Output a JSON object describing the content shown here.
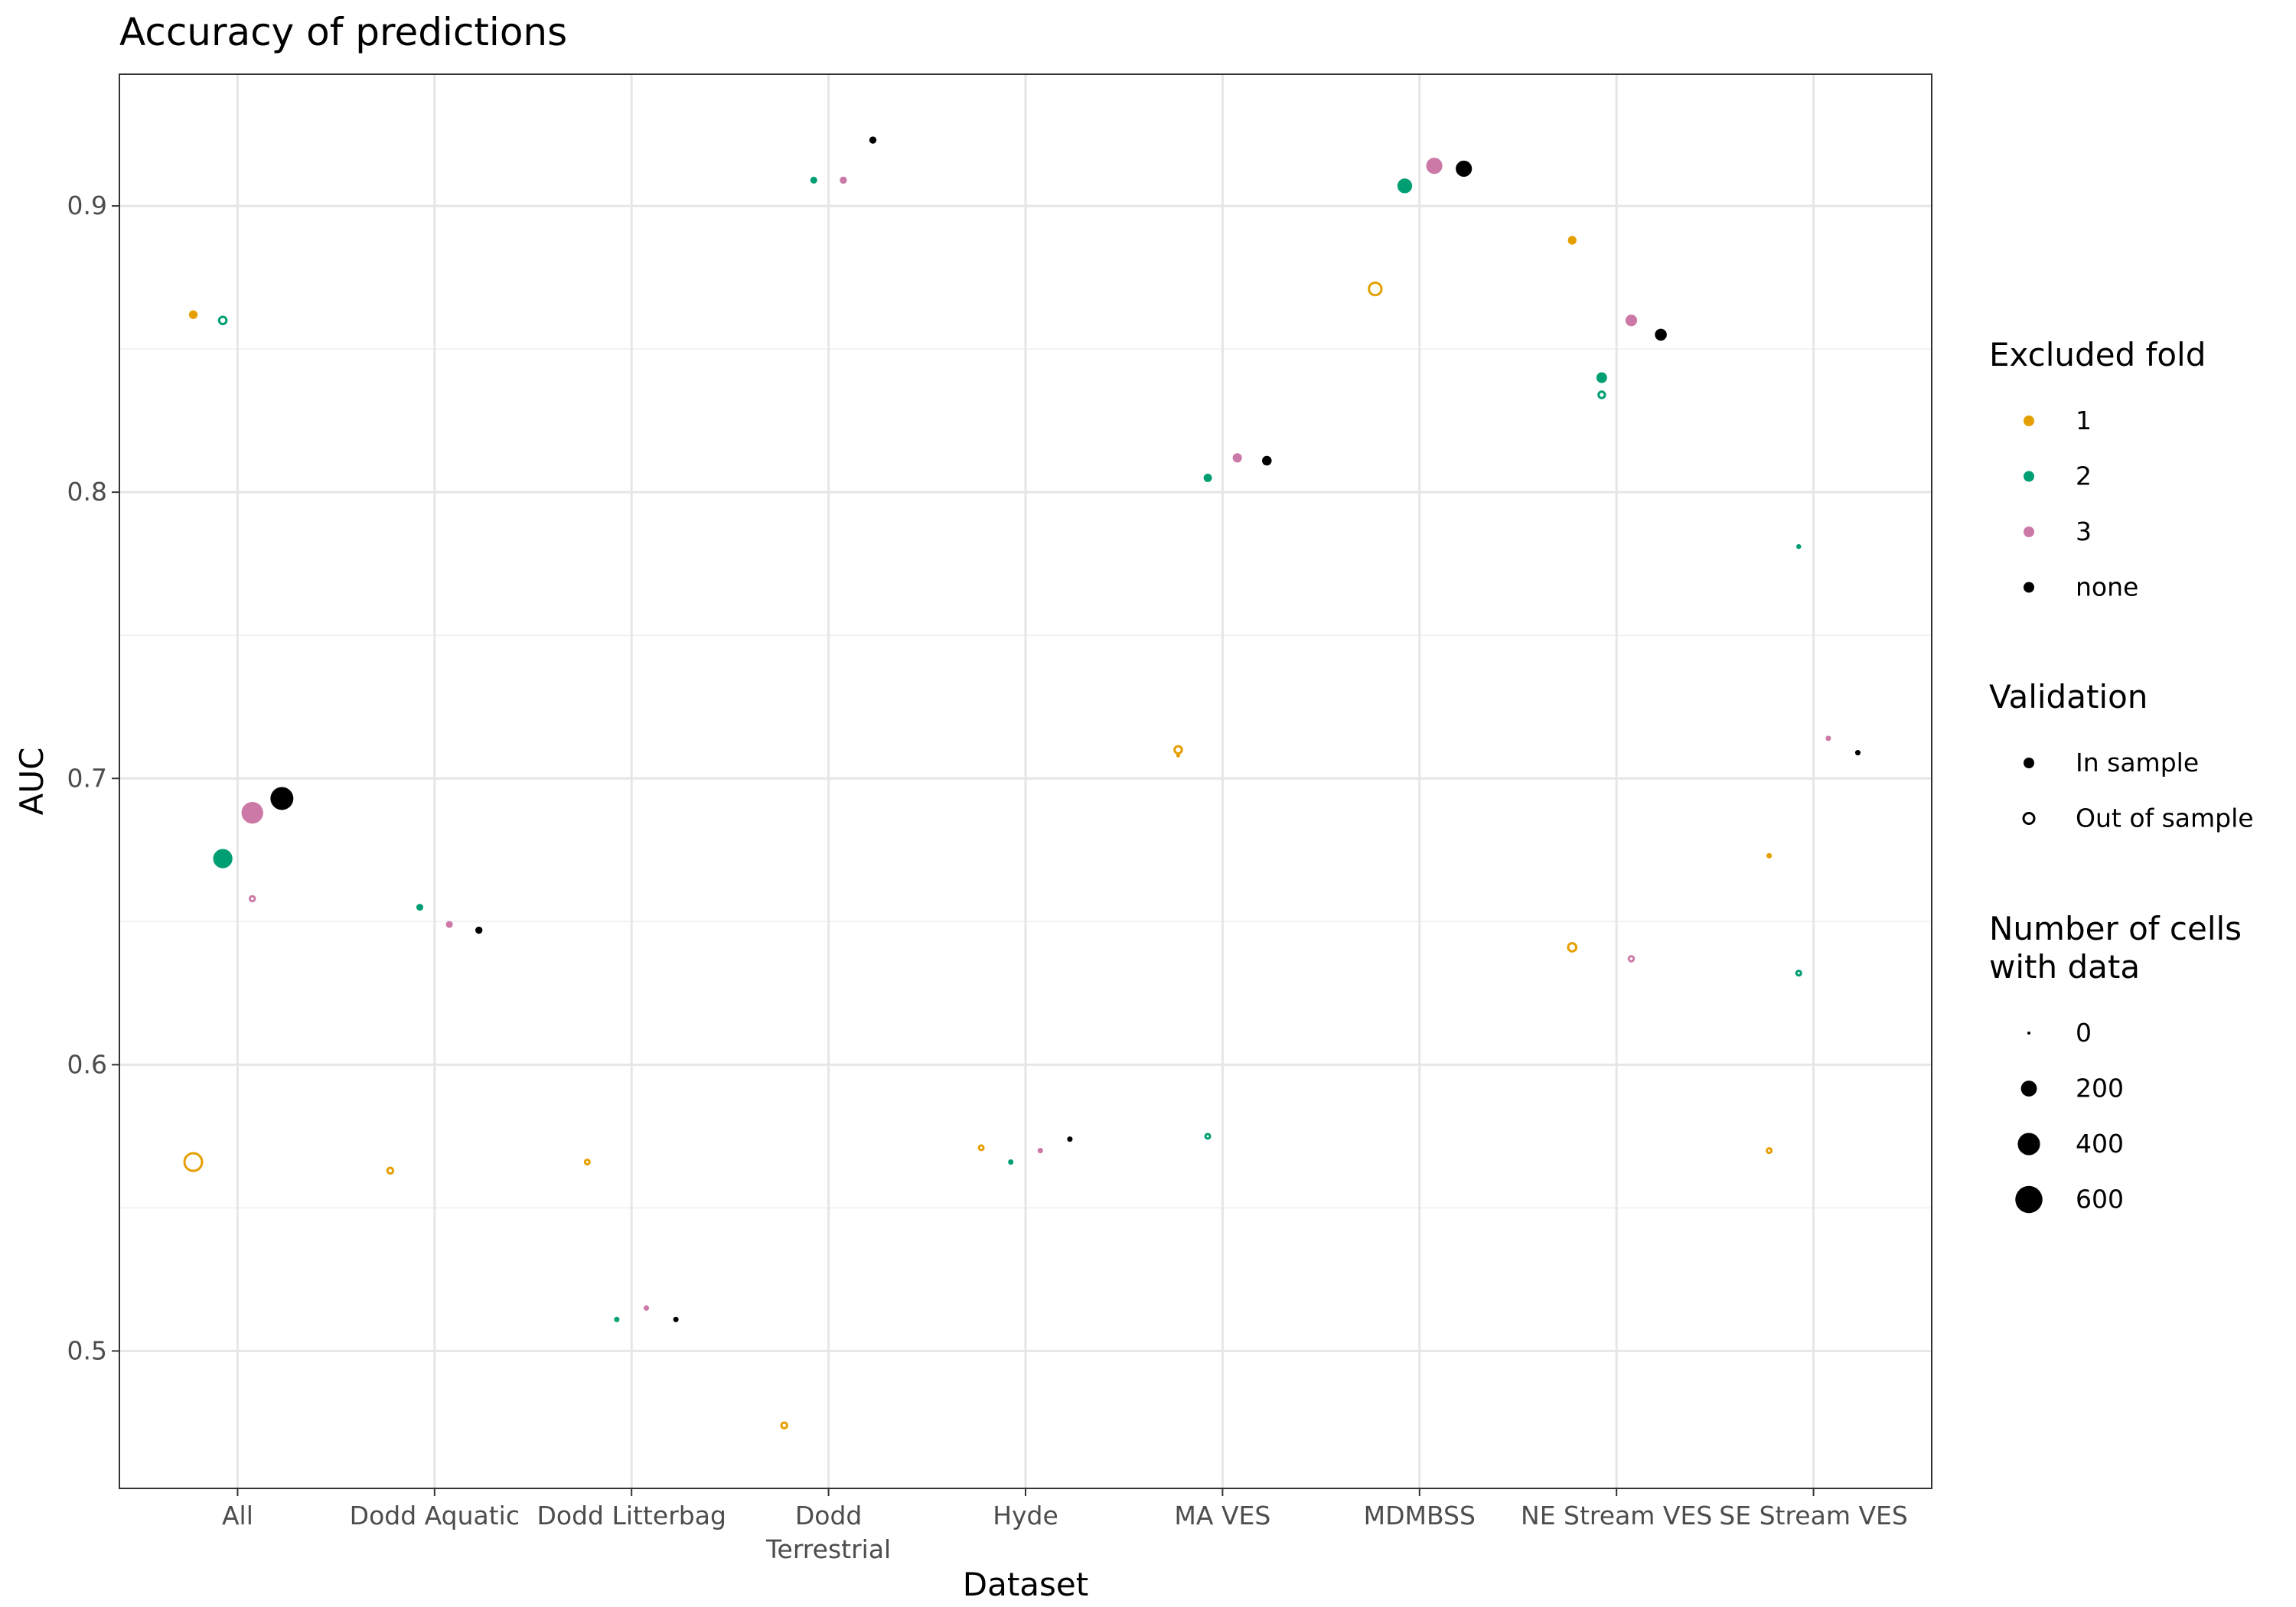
{
  "chart_data": {
    "type": "scatter",
    "title": "Accuracy of predictions",
    "xlabel": "Dataset",
    "ylabel": "AUC",
    "categories": [
      "All",
      "Dodd Aquatic",
      "Dodd Litterbag",
      "Dodd\nTerrestrial",
      "Hyde",
      "MA VES",
      "MDMBSS",
      "NE Stream VES",
      "SE Stream VES"
    ],
    "ylim": [
      0.452,
      0.946
    ],
    "y_ticks": [
      0.5,
      0.6,
      0.7,
      0.8,
      0.9
    ],
    "y_tick_labels": [
      "0.5",
      "0.6",
      "0.7",
      "0.8",
      "0.9"
    ],
    "grid": true,
    "legend_position": "right",
    "fold_colors": {
      "1": "#E69F00",
      "2": "#009E73",
      "3": "#CC79A7",
      "none": "#000000"
    },
    "fold_offsets": {
      "1": -0.225,
      "2": -0.075,
      "3": 0.075,
      "none": 0.225
    },
    "legends": {
      "fold": {
        "title": "Excluded fold",
        "items": [
          {
            "label": "1",
            "key": "1"
          },
          {
            "label": "2",
            "key": "2"
          },
          {
            "label": "3",
            "key": "3"
          },
          {
            "label": "none",
            "key": "none"
          }
        ]
      },
      "validation": {
        "title": "Validation",
        "items": [
          {
            "label": "In sample",
            "filled": true
          },
          {
            "label": "Out of sample",
            "filled": false
          }
        ]
      },
      "size": {
        "title_lines": [
          "Number of cells",
          "with data"
        ],
        "items": [
          {
            "label": "0",
            "value": 0
          },
          {
            "label": "200",
            "value": 200
          },
          {
            "label": "400",
            "value": 400
          },
          {
            "label": "600",
            "value": 600
          }
        ]
      }
    },
    "points": [
      {
        "dataset": "All",
        "fold": "1",
        "in_sample": true,
        "auc": 0.862,
        "cells": 60
      },
      {
        "dataset": "All",
        "fold": "2",
        "in_sample": false,
        "auc": 0.86,
        "cells": 75
      },
      {
        "dataset": "All",
        "fold": "1",
        "in_sample": false,
        "auc": 0.566,
        "cells": 350
      },
      {
        "dataset": "All",
        "fold": "2",
        "in_sample": true,
        "auc": 0.672,
        "cells": 330
      },
      {
        "dataset": "All",
        "fold": "3",
        "in_sample": true,
        "auc": 0.688,
        "cells": 420
      },
      {
        "dataset": "All",
        "fold": "3",
        "in_sample": false,
        "auc": 0.658,
        "cells": 40
      },
      {
        "dataset": "All",
        "fold": "none",
        "in_sample": true,
        "auc": 0.693,
        "cells": 470
      },
      {
        "dataset": "Dodd Aquatic",
        "fold": "1",
        "in_sample": false,
        "auc": 0.563,
        "cells": 50
      },
      {
        "dataset": "Dodd Aquatic",
        "fold": "2",
        "in_sample": true,
        "auc": 0.655,
        "cells": 35
      },
      {
        "dataset": "Dodd Aquatic",
        "fold": "3",
        "in_sample": true,
        "auc": 0.649,
        "cells": 35
      },
      {
        "dataset": "Dodd Aquatic",
        "fold": "none",
        "in_sample": true,
        "auc": 0.647,
        "cells": 38
      },
      {
        "dataset": "Dodd Litterbag",
        "fold": "1",
        "in_sample": false,
        "auc": 0.566,
        "cells": 25
      },
      {
        "dataset": "Dodd Litterbag",
        "fold": "2",
        "in_sample": true,
        "auc": 0.511,
        "cells": 18
      },
      {
        "dataset": "Dodd Litterbag",
        "fold": "3",
        "in_sample": true,
        "auc": 0.515,
        "cells": 18
      },
      {
        "dataset": "Dodd Litterbag",
        "fold": "none",
        "in_sample": true,
        "auc": 0.511,
        "cells": 18
      },
      {
        "dataset": "Dodd\nTerrestrial",
        "fold": "1",
        "in_sample": false,
        "auc": 0.474,
        "cells": 50
      },
      {
        "dataset": "Dodd\nTerrestrial",
        "fold": "2",
        "in_sample": true,
        "auc": 0.909,
        "cells": 35
      },
      {
        "dataset": "Dodd\nTerrestrial",
        "fold": "3",
        "in_sample": true,
        "auc": 0.909,
        "cells": 38
      },
      {
        "dataset": "Dodd\nTerrestrial",
        "fold": "none",
        "in_sample": true,
        "auc": 0.923,
        "cells": 38
      },
      {
        "dataset": "Hyde",
        "fold": "1",
        "in_sample": false,
        "auc": 0.571,
        "cells": 25
      },
      {
        "dataset": "Hyde",
        "fold": "2",
        "in_sample": true,
        "auc": 0.566,
        "cells": 18
      },
      {
        "dataset": "Hyde",
        "fold": "3",
        "in_sample": true,
        "auc": 0.57,
        "cells": 18
      },
      {
        "dataset": "Hyde",
        "fold": "none",
        "in_sample": true,
        "auc": 0.574,
        "cells": 18
      },
      {
        "dataset": "MA VES",
        "fold": "1",
        "in_sample": false,
        "auc": 0.71,
        "cells": 75
      },
      {
        "dataset": "MA VES",
        "fold": "1",
        "in_sample": true,
        "auc": 0.708,
        "cells": 5
      },
      {
        "dataset": "MA VES",
        "fold": "2",
        "in_sample": true,
        "auc": 0.805,
        "cells": 55
      },
      {
        "dataset": "MA VES",
        "fold": "2",
        "in_sample": false,
        "auc": 0.575,
        "cells": 25
      },
      {
        "dataset": "MA VES",
        "fold": "3",
        "in_sample": true,
        "auc": 0.812,
        "cells": 70
      },
      {
        "dataset": "MA VES",
        "fold": "none",
        "in_sample": true,
        "auc": 0.811,
        "cells": 75
      },
      {
        "dataset": "MDMBSS",
        "fold": "1",
        "in_sample": false,
        "auc": 0.871,
        "cells": 190
      },
      {
        "dataset": "MDMBSS",
        "fold": "2",
        "in_sample": true,
        "auc": 0.907,
        "cells": 190
      },
      {
        "dataset": "MDMBSS",
        "fold": "3",
        "in_sample": true,
        "auc": 0.914,
        "cells": 230
      },
      {
        "dataset": "MDMBSS",
        "fold": "none",
        "in_sample": true,
        "auc": 0.913,
        "cells": 230
      },
      {
        "dataset": "NE Stream VES",
        "fold": "1",
        "in_sample": true,
        "auc": 0.888,
        "cells": 60
      },
      {
        "dataset": "NE Stream VES",
        "fold": "1",
        "in_sample": false,
        "auc": 0.641,
        "cells": 90
      },
      {
        "dataset": "NE Stream VES",
        "fold": "2",
        "in_sample": true,
        "auc": 0.84,
        "cells": 95
      },
      {
        "dataset": "NE Stream VES",
        "fold": "2",
        "in_sample": false,
        "auc": 0.834,
        "cells": 60
      },
      {
        "dataset": "NE Stream VES",
        "fold": "3",
        "in_sample": true,
        "auc": 0.86,
        "cells": 115
      },
      {
        "dataset": "NE Stream VES",
        "fold": "3",
        "in_sample": false,
        "auc": 0.637,
        "cells": 40
      },
      {
        "dataset": "NE Stream VES",
        "fold": "none",
        "in_sample": true,
        "auc": 0.855,
        "cells": 120
      },
      {
        "dataset": "SE Stream VES",
        "fold": "1",
        "in_sample": true,
        "auc": 0.673,
        "cells": 18
      },
      {
        "dataset": "SE Stream VES",
        "fold": "1",
        "in_sample": false,
        "auc": 0.57,
        "cells": 25
      },
      {
        "dataset": "SE Stream VES",
        "fold": "2",
        "in_sample": true,
        "auc": 0.781,
        "cells": 14
      },
      {
        "dataset": "SE Stream VES",
        "fold": "2",
        "in_sample": false,
        "auc": 0.632,
        "cells": 35
      },
      {
        "dataset": "SE Stream VES",
        "fold": "3",
        "in_sample": true,
        "auc": 0.714,
        "cells": 18
      },
      {
        "dataset": "SE Stream VES",
        "fold": "none",
        "in_sample": true,
        "auc": 0.709,
        "cells": 18
      }
    ]
  }
}
